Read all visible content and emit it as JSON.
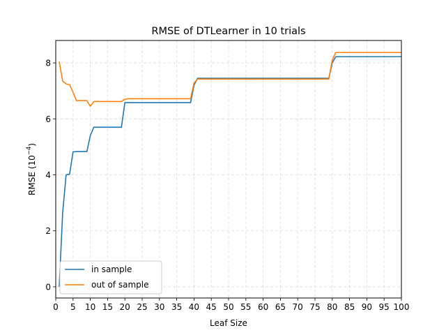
{
  "chart_data": {
    "type": "line",
    "title": "RMSE of DTLearner in 10 trials",
    "xlabel": "Leaf Size",
    "ylabel_main": "RMSE (10",
    "ylabel_exp": "−4",
    "ylabel_end": ")",
    "xlim": [
      0,
      100
    ],
    "ylim": [
      -0.4,
      8.8
    ],
    "xticks": [
      0,
      5,
      10,
      15,
      20,
      25,
      30,
      35,
      40,
      45,
      50,
      55,
      60,
      65,
      70,
      75,
      80,
      85,
      90,
      95,
      100
    ],
    "yticks": [
      0,
      2,
      4,
      6,
      8
    ],
    "grid": true,
    "legend_position": "lower-left",
    "series": [
      {
        "name": "in sample",
        "color": "#1f77b4",
        "points": [
          [
            1,
            0.0
          ],
          [
            2,
            2.65
          ],
          [
            3,
            4.0
          ],
          [
            4,
            4.02
          ],
          [
            5,
            4.82
          ],
          [
            6,
            4.83
          ],
          [
            7,
            4.83
          ],
          [
            8,
            4.83
          ],
          [
            9,
            4.83
          ],
          [
            10,
            5.4
          ],
          [
            11,
            5.7
          ],
          [
            12,
            5.7
          ],
          [
            13,
            5.7
          ],
          [
            14,
            5.7
          ],
          [
            15,
            5.7
          ],
          [
            16,
            5.7
          ],
          [
            17,
            5.7
          ],
          [
            18,
            5.7
          ],
          [
            19,
            5.7
          ],
          [
            20,
            6.58
          ],
          [
            21,
            6.58
          ],
          [
            25,
            6.58
          ],
          [
            30,
            6.58
          ],
          [
            35,
            6.58
          ],
          [
            39,
            6.58
          ],
          [
            40,
            7.2
          ],
          [
            41,
            7.45
          ],
          [
            42,
            7.45
          ],
          [
            50,
            7.45
          ],
          [
            60,
            7.45
          ],
          [
            70,
            7.45
          ],
          [
            79,
            7.45
          ],
          [
            80,
            8.0
          ],
          [
            81,
            8.22
          ],
          [
            82,
            8.22
          ],
          [
            90,
            8.22
          ],
          [
            100,
            8.22
          ]
        ]
      },
      {
        "name": "out of sample",
        "color": "#ff7f0e",
        "points": [
          [
            1,
            8.05
          ],
          [
            2,
            7.35
          ],
          [
            3,
            7.25
          ],
          [
            4,
            7.22
          ],
          [
            5,
            6.95
          ],
          [
            6,
            6.65
          ],
          [
            7,
            6.65
          ],
          [
            8,
            6.65
          ],
          [
            9,
            6.65
          ],
          [
            10,
            6.45
          ],
          [
            11,
            6.62
          ],
          [
            12,
            6.62
          ],
          [
            13,
            6.62
          ],
          [
            14,
            6.62
          ],
          [
            15,
            6.62
          ],
          [
            16,
            6.62
          ],
          [
            17,
            6.62
          ],
          [
            18,
            6.62
          ],
          [
            19,
            6.62
          ],
          [
            20,
            6.7
          ],
          [
            21,
            6.72
          ],
          [
            25,
            6.72
          ],
          [
            30,
            6.72
          ],
          [
            35,
            6.72
          ],
          [
            39,
            6.72
          ],
          [
            40,
            7.28
          ],
          [
            41,
            7.42
          ],
          [
            42,
            7.42
          ],
          [
            50,
            7.42
          ],
          [
            60,
            7.42
          ],
          [
            70,
            7.42
          ],
          [
            79,
            7.42
          ],
          [
            80,
            8.1
          ],
          [
            81,
            8.37
          ],
          [
            82,
            8.37
          ],
          [
            90,
            8.37
          ],
          [
            100,
            8.37
          ]
        ]
      }
    ]
  }
}
